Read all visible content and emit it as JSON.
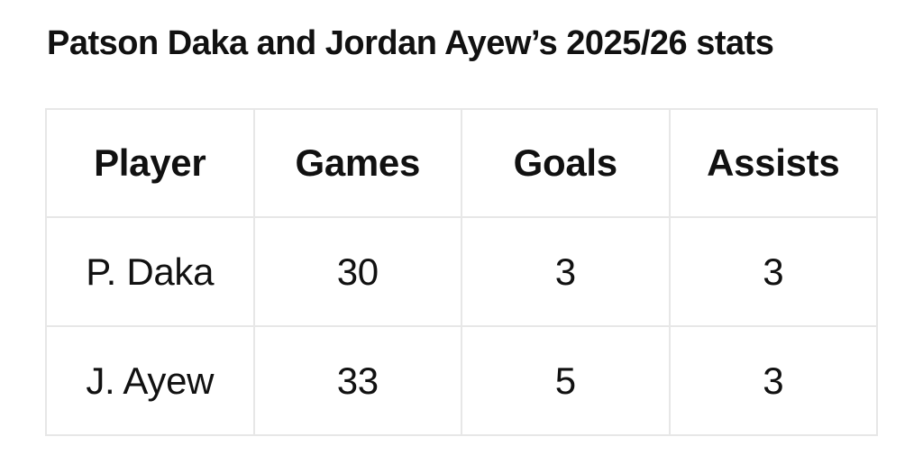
{
  "chart_data": {
    "type": "table",
    "title": "Patson Daka and Jordan Ayew’s 2025/26 stats",
    "columns": [
      "Player",
      "Games",
      "Goals",
      "Assists"
    ],
    "rows": [
      [
        "P. Daka",
        30,
        3,
        3
      ],
      [
        "J. Ayew",
        33,
        5,
        3
      ]
    ]
  },
  "colors": {
    "text": "#111111",
    "border": "#e7e7e7",
    "background": "#ffffff"
  }
}
